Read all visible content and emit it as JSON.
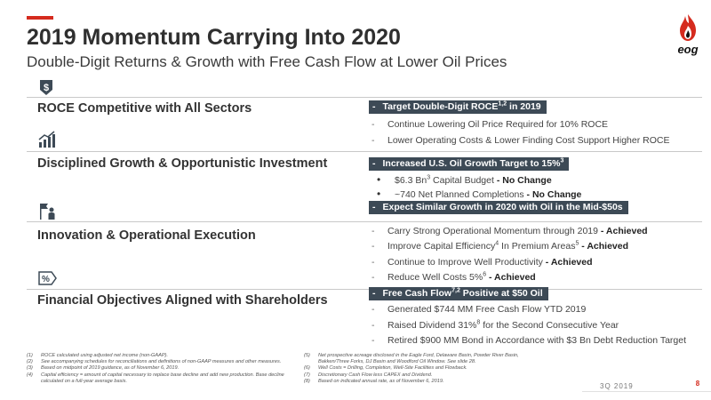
{
  "header": {
    "title": "2019 Momentum Carrying Into 2020",
    "subtitle": "Double-Digit Returns & Growth with Free Cash Flow at Lower Oil Prices",
    "logo_text": "eog",
    "accent_color": "#d52b1e"
  },
  "sections": [
    {
      "heading": "ROCE Competitive with All Sectors",
      "icon": "dollar-shield-icon",
      "tag": {
        "dash": "-",
        "text": "Target Double-Digit ROCE",
        "sup": "1,2",
        "after": " in 2019"
      },
      "bullets": [
        {
          "marker": "-",
          "text": "Continue Lowering Oil Price Required for 10% ROCE"
        },
        {
          "marker": "-",
          "text": "Lower Operating Costs & Lower Finding Cost Support Higher ROCE"
        }
      ]
    },
    {
      "heading": "Disciplined Growth & Opportunistic Investment",
      "icon": "bar-chart-growth-icon",
      "tag": {
        "dash": "-",
        "text": "Increased U.S. Oil Growth Target to 15%",
        "sup": "3"
      },
      "bullets": [
        {
          "marker": "•",
          "pre": "$6.3 Bn",
          "sup": "3",
          "text": " Capital Budget",
          "bold": " - No Change"
        },
        {
          "marker": "•",
          "text": "~740 Net Planned Completions",
          "bold": " - No Change"
        }
      ],
      "tag2": {
        "dash": "-",
        "text": "Expect Similar Growth in 2020 with Oil in the Mid-$50s"
      }
    },
    {
      "heading": "Innovation & Operational Execution",
      "icon": "flag-person-icon",
      "bullets": [
        {
          "marker": "-",
          "text": "Carry Strong Operational Momentum through 2019",
          "bold": " - Achieved"
        },
        {
          "marker": "-",
          "pre": "Improve Capital Efficiency",
          "sup": "4",
          "text": " In Premium Areas",
          "sup2": "5",
          "bold": " - Achieved"
        },
        {
          "marker": "-",
          "text": "Continue to Improve Well Productivity",
          "bold": " - Achieved"
        },
        {
          "marker": "-",
          "pre": "Reduce Well Costs 5%",
          "sup": "6",
          "bold": " - Achieved"
        }
      ]
    },
    {
      "heading": "Financial Objectives Aligned with Shareholders",
      "icon": "percent-tag-icon",
      "tag": {
        "dash": "-",
        "text": "Free Cash Flow",
        "sup": "7,2",
        "after": " Positive at $50 Oil"
      },
      "bullets": [
        {
          "marker": "-",
          "text": "Generated $744 MM Free Cash Flow YTD 2019"
        },
        {
          "marker": "-",
          "pre": "Raised Dividend 31%",
          "sup": "8",
          "text": " for the Second Consecutive Year"
        },
        {
          "marker": "-",
          "text": "Retired $900 MM Bond in Accordance with $3 Bn Debt Reduction Target"
        }
      ]
    }
  ],
  "footnotes_left": [
    {
      "num": "(1)",
      "text": "ROCE calculated using adjusted net income (non-GAAP)."
    },
    {
      "num": "(2)",
      "text": "See accompanying schedules for reconciliations and definitions of non-GAAP measures and other measures."
    },
    {
      "num": "(3)",
      "text": "Based on midpoint of 2019 guidance, as of November 6, 2019."
    },
    {
      "num": "(4)",
      "text": "Capital efficiency = amount of capital necessary to replace base decline and add new production. Base decline calculated on a full-year average basis."
    }
  ],
  "footnotes_right": [
    {
      "num": "(5)",
      "text": "Net prospective acreage disclosed in the Eagle Ford, Delaware Basin, Powder River Basin, Bakken/Three Forks, DJ Basin and Woodford Oil Window. See slide 28."
    },
    {
      "num": "(6)",
      "text": "Well Costs = Drilling, Completion, Well-Site Facilities and Flowback."
    },
    {
      "num": "(7)",
      "text": "Discretionary Cash Flow less CAPEX and Dividend."
    },
    {
      "num": "(8)",
      "text": "Based on indicated annual rate, as of November 6, 2019."
    }
  ],
  "footer": {
    "date": "3Q 2019",
    "page": "8"
  }
}
